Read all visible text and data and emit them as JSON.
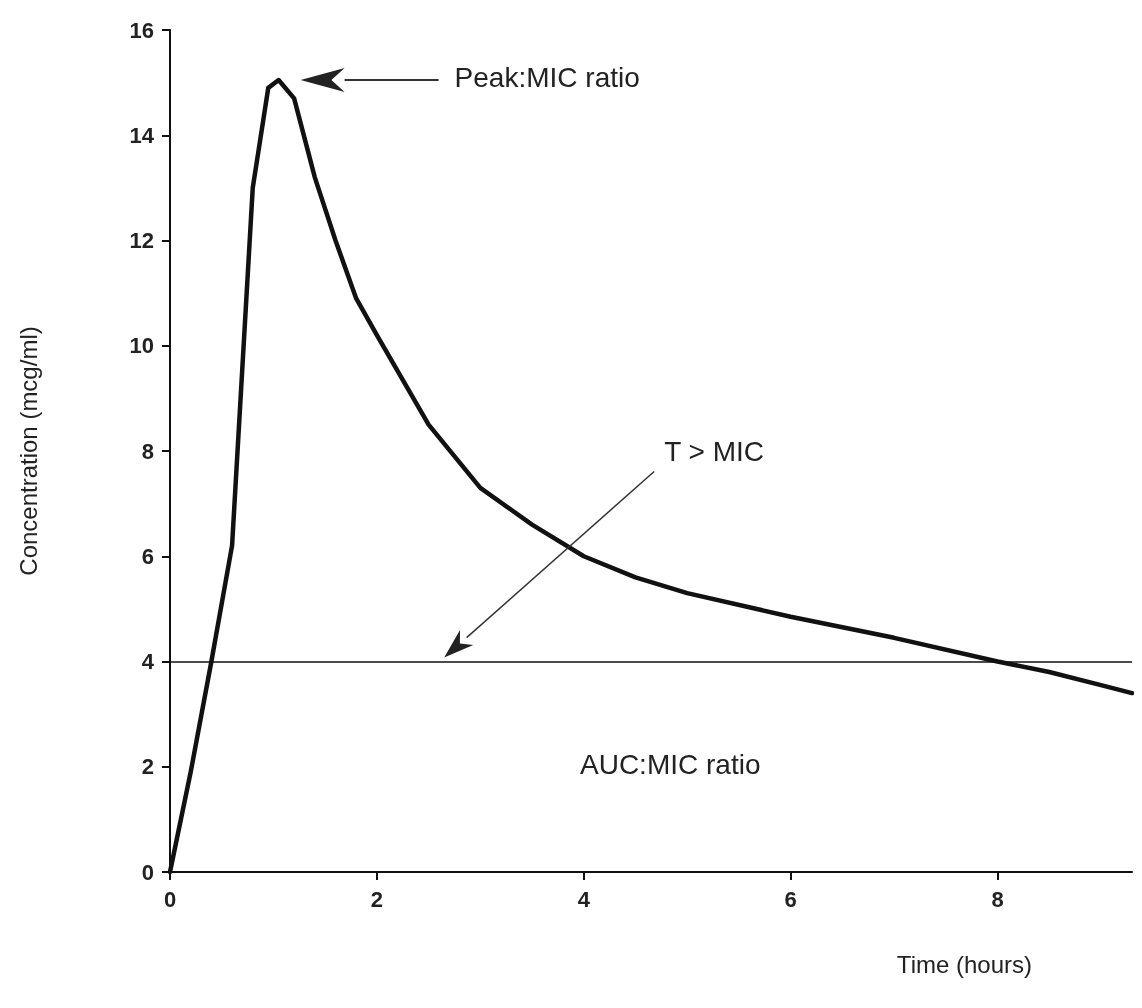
{
  "chart_data": {
    "type": "line",
    "xlabel": "Time (hours)",
    "ylabel": "Concentration (mcg/ml)",
    "x": [
      0,
      0.2,
      0.4,
      0.6,
      0.8,
      0.95,
      1.05,
      1.2,
      1.4,
      1.6,
      1.8,
      2,
      2.5,
      3,
      3.5,
      4,
      4.5,
      5,
      6,
      7,
      8,
      8.5,
      9,
      9.3
    ],
    "series": [
      {
        "color": "#111111",
        "values": [
          0,
          1.9,
          4,
          6.2,
          13,
          14.9,
          15.05,
          14.7,
          13.2,
          12,
          10.9,
          10.2,
          8.5,
          7.3,
          6.6,
          6,
          5.6,
          5.3,
          4.85,
          4.45,
          4,
          3.8,
          3.55,
          3.4
        ]
      }
    ],
    "xlim": [
      0,
      9.3
    ],
    "xticks": [
      0,
      2,
      4,
      6,
      8
    ],
    "ylim": [
      0,
      16
    ],
    "yticks": [
      0,
      2,
      4,
      6,
      8,
      10,
      12,
      14,
      16
    ],
    "ref_lines": [
      {
        "axis": "y",
        "value": 4,
        "color": "#111111"
      }
    ],
    "annotations": [
      "Peak:MIC ratio",
      "T > MIC",
      "AUC:MIC ratio"
    ],
    "grid": false,
    "marker": "none",
    "line_style": "solid"
  }
}
